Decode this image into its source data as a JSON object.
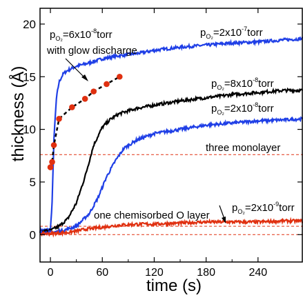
{
  "chart_data": {
    "type": "line",
    "xlabel": "time (s)",
    "ylabel": "thickness (Å)",
    "xlim": [
      -12,
      292
    ],
    "ylim": [
      -2.6,
      21.5
    ],
    "x_ticks": [
      0,
      60,
      120,
      180,
      240
    ],
    "y_ticks": [
      0,
      5,
      10,
      15,
      20
    ],
    "x_tick_labels": [
      "0",
      "60",
      "120",
      "180",
      "240"
    ],
    "y_tick_labels": [
      "0",
      "5",
      "10",
      "15",
      "20"
    ],
    "series": [
      {
        "name": "pO2=2x10^-7 torr",
        "color": "#1f3fe6",
        "x": [
          -12,
          0,
          2,
          4,
          7,
          10,
          15,
          20,
          30,
          40,
          60,
          80,
          100,
          120,
          150,
          180,
          210,
          240,
          270,
          292
        ],
        "y": [
          0.4,
          0.5,
          3,
          9,
          13,
          14.5,
          15.3,
          15.6,
          16.0,
          16.2,
          16.7,
          17.0,
          17.2,
          17.5,
          17.8,
          18.0,
          18.2,
          18.3,
          18.5,
          18.6
        ]
      },
      {
        "name": "pO2=8x10^-8 torr",
        "color": "#000000",
        "x": [
          -12,
          0,
          10,
          20,
          30,
          40,
          50,
          60,
          70,
          80,
          100,
          120,
          150,
          180,
          210,
          240,
          270,
          292
        ],
        "y": [
          0.3,
          0.4,
          0.8,
          1.5,
          3.0,
          5.5,
          8.5,
          10.2,
          11.0,
          11.5,
          12.0,
          12.3,
          12.7,
          13.0,
          13.3,
          13.5,
          13.7,
          13.7
        ]
      },
      {
        "name": "pO2=2x10^-8 torr",
        "color": "#1f3fe6",
        "x": [
          -12,
          0,
          15,
          30,
          45,
          55,
          65,
          75,
          85,
          100,
          120,
          150,
          180,
          210,
          240,
          270,
          292
        ],
        "y": [
          0.2,
          0.2,
          0.4,
          0.8,
          2.0,
          3.5,
          5.5,
          7.0,
          8.2,
          9.0,
          9.6,
          10.0,
          10.4,
          10.6,
          10.8,
          10.9,
          11.0
        ]
      },
      {
        "name": "pO2=2x10^-9 torr",
        "color": "#e03010",
        "x": [
          -12,
          0,
          20,
          40,
          60,
          80,
          100,
          120,
          150,
          180,
          210,
          240,
          270,
          292
        ],
        "y": [
          0.1,
          0.1,
          0.2,
          0.5,
          0.7,
          0.9,
          1.0,
          1.0,
          1.1,
          1.2,
          1.2,
          1.2,
          1.3,
          1.3
        ]
      },
      {
        "name": "pO2=6x10^-8 torr with glow discharge",
        "color": "#e03010",
        "style": "dashed-markers",
        "x": [
          0,
          2,
          4,
          10,
          25,
          40,
          50,
          65,
          80
        ],
        "y": [
          6.4,
          6.9,
          8.5,
          11.0,
          12.1,
          12.9,
          13.6,
          14.3,
          15.0
        ]
      }
    ],
    "reference_lines": [
      {
        "label": "three monolayer",
        "y": 7.6,
        "color": "#e03010"
      },
      {
        "label": "one chemisorbed O layer",
        "y": 0.8,
        "color": "#e03010"
      },
      {
        "label": "",
        "y": 0,
        "color": "#e03010"
      }
    ],
    "annotations": {
      "glow_pressure": "p",
      "glow_sub": "O₂",
      "glow_value": "=6x10",
      "glow_exp": "-8",
      "glow_unit": "torr",
      "glow_text": "with glow discharge",
      "p1_value": "=2x10",
      "p1_exp": "-7",
      "p2_value": "=8x10",
      "p2_exp": "-8",
      "p3_value": "=2x10",
      "p3_exp": "-8",
      "p4_value": "=2x10",
      "p4_exp": "-9",
      "three_monolayer": "three monolayer",
      "one_chem": "one chemisorbed O layer",
      "p": "p",
      "o2": "O₂",
      "torr": "torr"
    }
  }
}
